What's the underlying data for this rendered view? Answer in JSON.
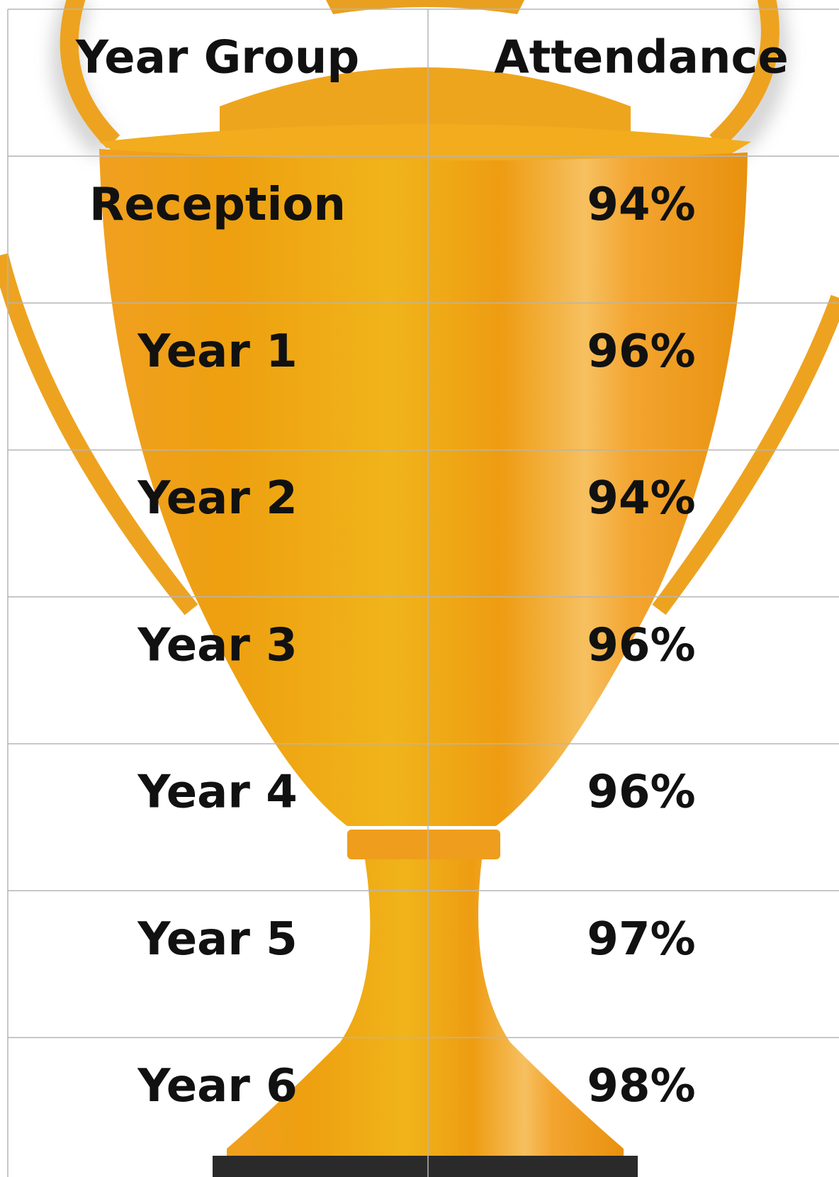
{
  "table": {
    "header": [
      "Year Group",
      "Attendance"
    ],
    "rows": [
      [
        "Reception",
        "94%"
      ],
      [
        "Year 1",
        "96%"
      ],
      [
        "Year 2",
        "94%"
      ],
      [
        "Year 3",
        "96%"
      ],
      [
        "Year 4",
        "96%"
      ],
      [
        "Year 5",
        "97%"
      ],
      [
        "Year 6",
        "98%"
      ]
    ]
  }
}
